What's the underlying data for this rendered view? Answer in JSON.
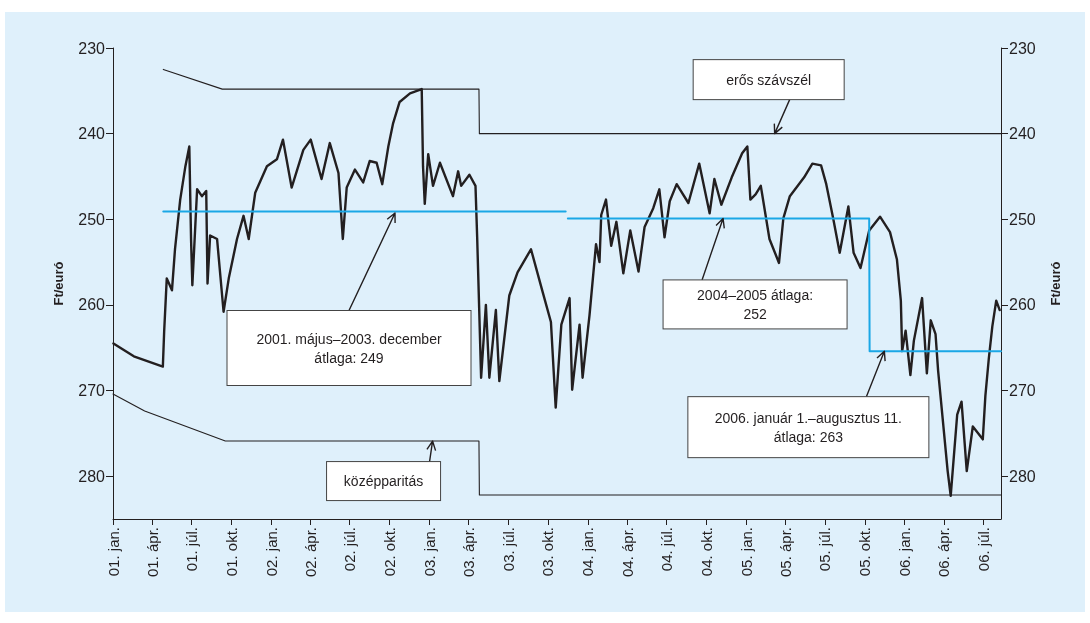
{
  "chart_data": {
    "type": "line",
    "ylabel": "Ft/euró",
    "y2label": "Ft/euró",
    "xlim": [
      "2001-01-01",
      "2006-08-11"
    ],
    "xticks": [
      {
        "value": "2001-01-01",
        "label": "01. jan."
      },
      {
        "value": "2001-04-01",
        "label": "01. ápr."
      },
      {
        "value": "2001-07-01",
        "label": "01. júl."
      },
      {
        "value": "2001-10-01",
        "label": "01. okt."
      },
      {
        "value": "2002-01-01",
        "label": "02. jan."
      },
      {
        "value": "2002-04-01",
        "label": "02. ápr."
      },
      {
        "value": "2002-07-01",
        "label": "02. júl."
      },
      {
        "value": "2002-10-01",
        "label": "02. okt."
      },
      {
        "value": "2003-01-01",
        "label": "03. jan."
      },
      {
        "value": "2003-04-01",
        "label": "03. ápr."
      },
      {
        "value": "2003-07-01",
        "label": "03. júl."
      },
      {
        "value": "2003-10-01",
        "label": "03. okt."
      },
      {
        "value": "2004-01-01",
        "label": "04. jan."
      },
      {
        "value": "2004-04-01",
        "label": "04. ápr."
      },
      {
        "value": "2004-07-01",
        "label": "04. júl."
      },
      {
        "value": "2004-10-01",
        "label": "04. okt."
      },
      {
        "value": "2005-01-01",
        "label": "05. jan."
      },
      {
        "value": "2005-04-01",
        "label": "05. ápr."
      },
      {
        "value": "2005-07-01",
        "label": "05. júl."
      },
      {
        "value": "2005-10-01",
        "label": "05. okt."
      },
      {
        "value": "2006-01-01",
        "label": "06. jan."
      },
      {
        "value": "2006-04-01",
        "label": "06. ápr."
      },
      {
        "value": "2006-07-01",
        "label": "06. júl."
      }
    ],
    "ylim": [
      285,
      230
    ],
    "yticks": [
      230,
      240,
      250,
      260,
      270,
      280
    ],
    "y2lim": [
      285,
      230
    ],
    "y2ticks": [
      230,
      240,
      250,
      260,
      270,
      280
    ],
    "grid": false,
    "marker": "none",
    "series": [
      {
        "color": "#231f20",
        "x": [
          "2001-01-02",
          "2001-02-18",
          "2001-04-26",
          "2001-04-29",
          "2001-05-05",
          "2001-05-17",
          "2001-05-24",
          "2001-06-05",
          "2001-06-17",
          "2001-06-26",
          "2001-06-30",
          "2001-07-03",
          "2001-07-14",
          "2001-07-25",
          "2001-08-04",
          "2001-08-07",
          "2001-08-13",
          "2001-08-29",
          "2001-09-13",
          "2001-09-25",
          "2001-10-14",
          "2001-10-29",
          "2001-11-10",
          "2001-11-25",
          "2001-12-22",
          "2002-01-14",
          "2002-01-28",
          "2002-02-17",
          "2002-03-16",
          "2002-04-02",
          "2002-04-27",
          "2002-05-16",
          "2002-06-05",
          "2002-06-15",
          "2002-06-24",
          "2002-07-13",
          "2002-08-01",
          "2002-08-16",
          "2002-09-01",
          "2002-09-14",
          "2002-09-28",
          "2002-10-09",
          "2002-10-24",
          "2002-11-17",
          "2002-12-14",
          "2002-12-17",
          "2002-12-21",
          "2002-12-29",
          "2003-01-09",
          "2003-01-25",
          "2003-02-24",
          "2003-03-08",
          "2003-03-15",
          "2003-04-03",
          "2003-04-17",
          "2003-04-21",
          "2003-04-30",
          "2003-05-11",
          "2003-05-19",
          "2003-06-03",
          "2003-06-11",
          "2003-07-04",
          "2003-07-23",
          "2003-08-23",
          "2003-09-19",
          "2003-10-08",
          "2003-10-19",
          "2003-11-01",
          "2003-11-20",
          "2003-11-26",
          "2003-12-13",
          "2003-12-20",
          "2004-01-05",
          "2004-01-20",
          "2004-01-28",
          "2004-02-01",
          "2004-02-12",
          "2004-02-24",
          "2004-03-07",
          "2004-03-23",
          "2004-04-08",
          "2004-04-27",
          "2004-05-11",
          "2004-05-31",
          "2004-06-14",
          "2004-06-26",
          "2004-07-08",
          "2004-07-24",
          "2004-08-20",
          "2004-09-14",
          "2004-10-08",
          "2004-10-19",
          "2004-11-04",
          "2004-11-28",
          "2004-12-22",
          "2005-01-03",
          "2005-01-10",
          "2005-01-22",
          "2005-02-03",
          "2005-02-23",
          "2005-03-17",
          "2005-03-27",
          "2005-04-11",
          "2005-05-14",
          "2005-06-02",
          "2005-06-22",
          "2005-07-04",
          "2005-07-20",
          "2005-08-04",
          "2005-08-24",
          "2005-09-05",
          "2005-09-21",
          "2005-10-11",
          "2005-11-05",
          "2005-11-28",
          "2005-12-14",
          "2005-12-23",
          "2005-12-26",
          "2006-01-03",
          "2006-01-14",
          "2006-01-22",
          "2006-02-10",
          "2006-02-21",
          "2006-03-02",
          "2006-03-13",
          "2006-03-19",
          "2006-04-10",
          "2006-04-17",
          "2006-05-02",
          "2006-05-12",
          "2006-05-24",
          "2006-06-07",
          "2006-06-30",
          "2006-07-06",
          "2006-07-14",
          "2006-07-22",
          "2006-07-31",
          "2006-08-08"
        ],
        "values": [
          264.5,
          266.0,
          267.2,
          263.1,
          256.9,
          258.3,
          253.5,
          247.7,
          243.8,
          241.5,
          252.3,
          257.7,
          246.5,
          247.3,
          246.7,
          257.5,
          251.9,
          252.3,
          260.8,
          256.9,
          252.3,
          249.6,
          252.3,
          246.9,
          243.8,
          243.0,
          240.7,
          246.3,
          241.9,
          240.7,
          245.3,
          241.1,
          244.6,
          252.3,
          246.3,
          244.2,
          245.7,
          243.2,
          243.4,
          245.9,
          241.5,
          238.8,
          236.3,
          235.3,
          234.8,
          243.8,
          248.2,
          242.4,
          246.1,
          243.4,
          247.3,
          244.4,
          246.1,
          244.8,
          246.1,
          252.3,
          268.5,
          260.0,
          268.5,
          260.6,
          268.9,
          258.9,
          256.2,
          253.5,
          258.5,
          262.0,
          272.0,
          262.3,
          259.2,
          269.9,
          262.3,
          268.5,
          261.2,
          252.9,
          255.0,
          249.5,
          247.7,
          253.1,
          250.3,
          256.3,
          251.3,
          256.1,
          250.9,
          248.7,
          246.5,
          252.1,
          247.9,
          245.9,
          248.1,
          243.5,
          249.3,
          245.3,
          248.3,
          245.1,
          242.3,
          241.5,
          247.7,
          247.1,
          246.1,
          252.3,
          255.1,
          249.9,
          247.3,
          245.1,
          243.5,
          243.7,
          245.9,
          249.9,
          253.9,
          248.5,
          253.9,
          255.7,
          251.3,
          249.7,
          251.5,
          254.7,
          259.5,
          265.4,
          263.0,
          268.2,
          264.2,
          259.2,
          268.0,
          261.8,
          263.4,
          267.7,
          279.4,
          282.3,
          272.8,
          271.3,
          279.4,
          274.2,
          275.7,
          270.6,
          266.2,
          262.5,
          259.5,
          260.6
        ]
      },
      {
        "color": "#231f20",
        "x": [
          "2001-04-27",
          "2001-09-10",
          "2003-04-25",
          "2003-04-26",
          "2006-08-11"
        ],
        "values": [
          232.5,
          234.8,
          234.8,
          240.0,
          240.0
        ]
      },
      {
        "color": "#231f20",
        "x": [
          "2001-01-01",
          "2001-03-15",
          "2001-09-17",
          "2003-04-25",
          "2003-04-26",
          "2006-08-11"
        ],
        "values": [
          270.4,
          272.4,
          275.9,
          275.9,
          282.2,
          282.2
        ]
      },
      {
        "color": "#1aa7e6",
        "x": [
          "2001-04-27",
          "2003-11-11",
          "2003-11-13",
          "2003-11-16",
          "2005-10-11",
          "2005-10-12",
          "2006-08-11"
        ],
        "values": [
          249.1,
          249.1,
          null,
          249.9,
          249.9,
          265.4,
          265.4
        ]
      }
    ],
    "annotations": [
      {
        "text": "erős szávszél",
        "x": "2005-03-07",
        "y": 240
      },
      "2001. május–2003. december\nátlaga: 249",
      {
        "text": "2004–2005 átlaga:\n252",
        "x": "2004-11-08",
        "y": 249.9
      },
      {
        "text": "2006. január 1.–augusztus 11.\nátlaga: 263",
        "x": "2005-11-15",
        "y": 265.4
      },
      {
        "text": "középparitás",
        "x": "2003-01-08",
        "y": 275.9
      }
    ]
  }
}
